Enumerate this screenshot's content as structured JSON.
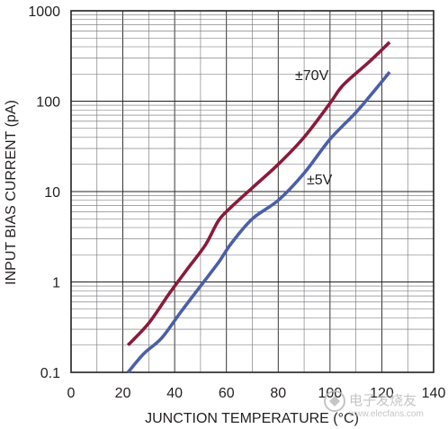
{
  "chart_data": {
    "type": "line",
    "title": "",
    "xlabel": "JUNCTION TEMPERATURE (°C)",
    "ylabel": "INPUT BIAS CURRENT (pA)",
    "xlim": [
      0,
      140
    ],
    "ylim": [
      0.1,
      1000
    ],
    "yscale": "log",
    "grid": true,
    "x_ticks": [
      "0",
      "20",
      "40",
      "60",
      "80",
      "100",
      "120",
      "140"
    ],
    "y_ticks": [
      "0.1",
      "1",
      "10",
      "100",
      "1000"
    ],
    "series": [
      {
        "name": "±70V",
        "color": "#8b1a3a",
        "points": [
          [
            22,
            0.2
          ],
          [
            30,
            0.35
          ],
          [
            38,
            0.75
          ],
          [
            45,
            1.4
          ],
          [
            52,
            2.6
          ],
          [
            57,
            4.8
          ],
          [
            62,
            6.8
          ],
          [
            70,
            11
          ],
          [
            80,
            20
          ],
          [
            90,
            40
          ],
          [
            100,
            95
          ],
          [
            105,
            150
          ],
          [
            115,
            270
          ],
          [
            123,
            450
          ]
        ]
      },
      {
        "name": "±5V",
        "color": "#4a5fa8",
        "points": [
          [
            22,
            0.1
          ],
          [
            28,
            0.16
          ],
          [
            35,
            0.24
          ],
          [
            42,
            0.45
          ],
          [
            50,
            0.9
          ],
          [
            57,
            1.65
          ],
          [
            62,
            2.7
          ],
          [
            70,
            5
          ],
          [
            80,
            8
          ],
          [
            90,
            16
          ],
          [
            100,
            38
          ],
          [
            110,
            75
          ],
          [
            118,
            140
          ],
          [
            123,
            210
          ]
        ]
      }
    ]
  },
  "watermark": {
    "text_cn": "电子发烧友",
    "text_url": "www.elecfans.com"
  }
}
